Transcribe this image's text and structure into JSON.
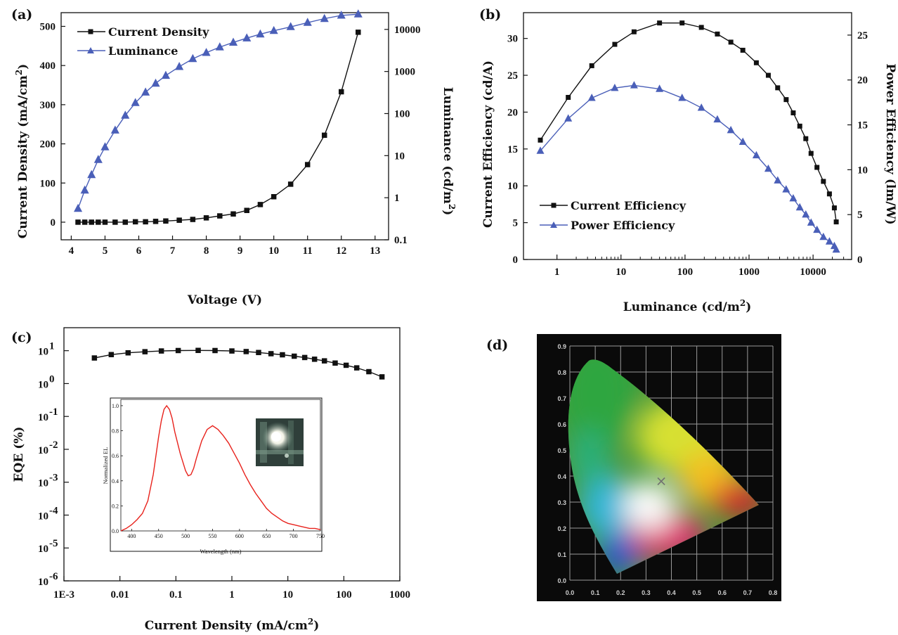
{
  "colors": {
    "black_series": "#111111",
    "blue_series": "#4a5fb8",
    "inset_line": "#e8221c",
    "cie_bg": "#0a0a0a",
    "cie_grid": "#9a9a9a"
  },
  "panels": {
    "a": {
      "label": "(a)"
    },
    "b": {
      "label": "(b)"
    },
    "c": {
      "label": "(c)"
    },
    "d": {
      "label": "(d)"
    }
  },
  "chart_data": [
    {
      "id": "a",
      "type": "line",
      "xlabel": "Voltage (V)",
      "ylabel": "Current Density (mA/cm",
      "ylabel_sup": "2",
      "ylabel_close": ")",
      "y2label": "Luminance (cd/m",
      "y2label_sup": "2",
      "y2label_close": ")",
      "xlim": [
        3.7,
        13.4
      ],
      "ylim": [
        -45,
        535
      ],
      "y2lim_log": [
        0.1,
        25000
      ],
      "y2_scale": "log",
      "xticks": [
        "4",
        "5",
        "6",
        "7",
        "8",
        "9",
        "10",
        "11",
        "12",
        "13"
      ],
      "yticks": [
        "0",
        "100",
        "200",
        "300",
        "400",
        "500"
      ],
      "y2ticks": [
        "0.1",
        "1",
        "10",
        "100",
        "1000",
        "10000"
      ],
      "legend_position": "top-left",
      "series": [
        {
          "name": "Current Density",
          "axis": "left",
          "marker": "square",
          "x": [
            4.2,
            4.4,
            4.6,
            4.8,
            5.0,
            5.3,
            5.6,
            5.9,
            6.2,
            6.5,
            6.8,
            7.2,
            7.6,
            8.0,
            8.4,
            8.8,
            9.2,
            9.6,
            10.0,
            10.5,
            11.0,
            11.5,
            12.0,
            12.5
          ],
          "y": [
            0,
            0,
            0,
            0,
            0,
            0,
            0,
            1,
            1,
            2,
            3,
            5,
            7,
            11,
            16,
            21,
            30,
            45,
            65,
            97,
            147,
            222,
            333,
            485
          ]
        },
        {
          "name": "Luminance",
          "axis": "right",
          "marker": "triangle",
          "x": [
            4.2,
            4.4,
            4.6,
            4.8,
            5.0,
            5.3,
            5.6,
            5.9,
            6.2,
            6.5,
            6.8,
            7.2,
            7.6,
            8.0,
            8.4,
            8.8,
            9.2,
            9.6,
            10.0,
            10.5,
            11.0,
            11.5,
            12.0,
            12.5
          ],
          "y": [
            0.55,
            1.5,
            3.5,
            8,
            16,
            40,
            90,
            180,
            320,
            520,
            800,
            1300,
            2000,
            2800,
            3800,
            4900,
            6200,
            7700,
            9300,
            11500,
            14500,
            18000,
            21500,
            23000
          ]
        }
      ]
    },
    {
      "id": "b",
      "type": "line",
      "xlabel": "Luminance (cd/m",
      "xlabel_sup": "2",
      "xlabel_close": ")",
      "ylabel": "Current Efficiency (cd/A)",
      "y2label": "Power Efficiency (lm/W)",
      "x_scale": "log",
      "xlim_log": [
        0.3,
        40000
      ],
      "ylim": [
        0,
        33.5
      ],
      "y2lim": [
        0,
        27.5
      ],
      "xticks": [
        "1",
        "10",
        "100",
        "1000",
        "10000"
      ],
      "yticks": [
        "0",
        "5",
        "10",
        "15",
        "20",
        "25",
        "30"
      ],
      "y2ticks": [
        "0",
        "5",
        "10",
        "15",
        "20",
        "25"
      ],
      "legend_position": "bottom-left",
      "series": [
        {
          "name": "Current Efficiency",
          "axis": "left",
          "marker": "square",
          "x": [
            0.55,
            1.5,
            3.5,
            8,
            16,
            40,
            90,
            180,
            320,
            520,
            800,
            1300,
            2000,
            2800,
            3800,
            4900,
            6200,
            7700,
            9300,
            11500,
            14500,
            18000,
            21500,
            23000
          ],
          "y": [
            16.2,
            22.0,
            26.3,
            29.2,
            30.9,
            32.1,
            32.1,
            31.5,
            30.6,
            29.5,
            28.4,
            26.7,
            25.0,
            23.3,
            21.7,
            19.9,
            18.1,
            16.4,
            14.4,
            12.5,
            10.6,
            8.9,
            7.0,
            5.1
          ]
        },
        {
          "name": "Power Efficiency",
          "axis": "right",
          "marker": "triangle",
          "x": [
            0.55,
            1.5,
            3.5,
            8,
            16,
            40,
            90,
            180,
            320,
            520,
            800,
            1300,
            2000,
            2800,
            3800,
            4900,
            6200,
            7700,
            9300,
            11500,
            14500,
            18000,
            21500,
            23000
          ],
          "y": [
            12.1,
            15.7,
            18.0,
            19.1,
            19.4,
            19.0,
            18.0,
            16.9,
            15.6,
            14.4,
            13.1,
            11.6,
            10.1,
            8.8,
            7.8,
            6.8,
            5.8,
            5.0,
            4.1,
            3.3,
            2.5,
            2.0,
            1.5,
            1.1
          ]
        }
      ]
    },
    {
      "id": "c",
      "type": "scatter",
      "xlabel": "Current Density (mA/cm",
      "xlabel_sup": "2",
      "xlabel_close": ")",
      "ylabel": "EQE (%)",
      "x_scale": "log",
      "y_scale": "log",
      "xlim_log": [
        0.001,
        1000
      ],
      "ylim_log": [
        1e-06,
        50
      ],
      "xticks": [
        "1E-3",
        "0.01",
        "0.1",
        "1",
        "10",
        "100",
        "1000"
      ],
      "yticks": [
        {
          "base": "10",
          "exp": "1"
        },
        {
          "base": "10",
          "exp": "0"
        },
        {
          "base": "10",
          "exp": "-1"
        },
        {
          "base": "10",
          "exp": "-2"
        },
        {
          "base": "10",
          "exp": "-3"
        },
        {
          "base": "10",
          "exp": "-4"
        },
        {
          "base": "10",
          "exp": "-5"
        },
        {
          "base": "10",
          "exp": "-6"
        }
      ],
      "series": [
        {
          "name": "EQE",
          "marker": "square",
          "x": [
            0.0035,
            0.007,
            0.014,
            0.028,
            0.055,
            0.11,
            0.25,
            0.5,
            1.0,
            1.8,
            3.0,
            5.0,
            8.0,
            13,
            20,
            30,
            45,
            70,
            110,
            170,
            280,
            480
          ],
          "y": [
            6.0,
            7.6,
            8.6,
            9.3,
            9.8,
            10.1,
            10.2,
            10.1,
            9.8,
            9.4,
            8.8,
            8.1,
            7.5,
            6.8,
            6.2,
            5.5,
            4.9,
            4.2,
            3.6,
            3.0,
            2.3,
            1.6
          ]
        }
      ],
      "inset": {
        "type": "line",
        "xlabel": "Wavelength (nm)",
        "ylabel": "Normalized EL",
        "xlim": [
          380,
          750
        ],
        "ylim": [
          0,
          1.05
        ],
        "xticks": [
          "400",
          "450",
          "500",
          "550",
          "600",
          "650",
          "700",
          "750"
        ],
        "yticks": [
          "0.0",
          "0.2",
          "0.4",
          "0.6",
          "0.8",
          "1.0"
        ],
        "series": [
          {
            "name": "EL spectrum",
            "x": [
              380,
              390,
              400,
              410,
              420,
              430,
              440,
              450,
              455,
              460,
              465,
              470,
              475,
              480,
              490,
              500,
              505,
              510,
              515,
              520,
              530,
              540,
              550,
              560,
              570,
              580,
              590,
              600,
              610,
              620,
              630,
              640,
              650,
              660,
              670,
              680,
              690,
              700,
              710,
              720,
              730,
              740,
              750
            ],
            "y": [
              0.0,
              0.02,
              0.05,
              0.09,
              0.14,
              0.24,
              0.45,
              0.75,
              0.88,
              0.97,
              1.0,
              0.97,
              0.9,
              0.79,
              0.62,
              0.48,
              0.44,
              0.45,
              0.5,
              0.58,
              0.72,
              0.81,
              0.84,
              0.81,
              0.76,
              0.7,
              0.62,
              0.54,
              0.45,
              0.37,
              0.3,
              0.24,
              0.18,
              0.14,
              0.11,
              0.08,
              0.06,
              0.05,
              0.04,
              0.03,
              0.02,
              0.02,
              0.01
            ]
          }
        ]
      }
    },
    {
      "id": "d",
      "type": "scatter",
      "xlim": [
        0.0,
        0.8
      ],
      "ylim": [
        0.0,
        0.9
      ],
      "xticks": [
        "0.0",
        "0.1",
        "0.2",
        "0.3",
        "0.4",
        "0.5",
        "0.6",
        "0.7",
        "0.8"
      ],
      "yticks": [
        "0.0",
        "0.1",
        "0.2",
        "0.3",
        "0.4",
        "0.5",
        "0.6",
        "0.7",
        "0.8",
        "0.9"
      ],
      "series": [
        {
          "name": "CIE point",
          "marker": "x",
          "x": [
            0.36
          ],
          "y": [
            0.38
          ]
        }
      ]
    }
  ]
}
